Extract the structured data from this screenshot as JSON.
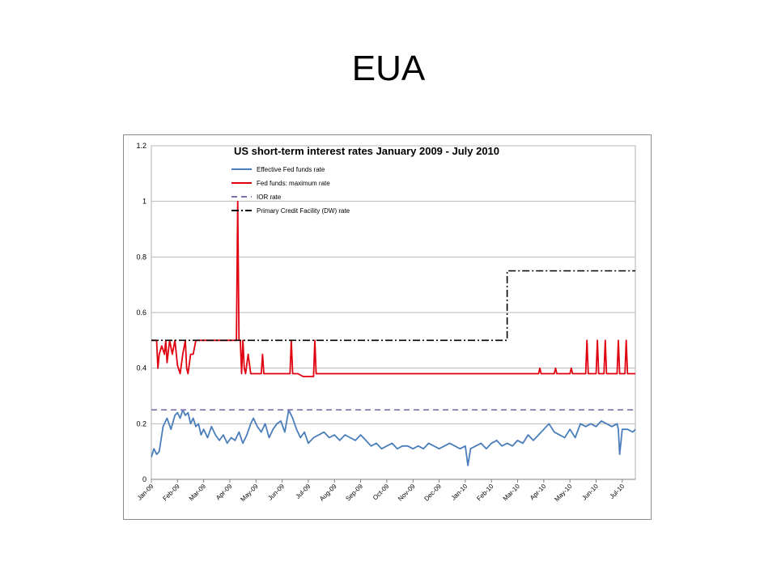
{
  "slide": {
    "title": "EUA"
  },
  "chart_data": {
    "type": "line",
    "title": "US short-term interest rates January 2009 - July 2010",
    "xlabel": "",
    "ylabel": "",
    "ylim": [
      0,
      1.2
    ],
    "yticks": [
      "0",
      "0.2",
      "0.4",
      "0.6",
      "0.8",
      "1",
      "1.2"
    ],
    "grid": true,
    "legend_position": "top-left",
    "x_tick_labels": [
      "Jan-09",
      "Feb-09",
      "Mar-09",
      "Apr-09",
      "May-09",
      "Jun-09",
      "Jul-09",
      "Aug-09",
      "Sep-09",
      "Oct-09",
      "Nov-09",
      "Dec-09",
      "Jan-10",
      "Feb-10",
      "Mar-10",
      "Apr-10",
      "May-10",
      "Jun-10",
      "Jul-10"
    ],
    "series": [
      {
        "name": "Effective Fed funds rate",
        "color": "#4a7ebb",
        "style": "solid",
        "x": [
          0,
          0.1,
          0.2,
          0.3,
          0.45,
          0.6,
          0.75,
          0.9,
          1.0,
          1.1,
          1.2,
          1.3,
          1.4,
          1.5,
          1.6,
          1.7,
          1.8,
          1.9,
          2.0,
          2.15,
          2.3,
          2.45,
          2.6,
          2.75,
          2.9,
          3.05,
          3.2,
          3.35,
          3.5,
          3.65,
          3.8,
          3.9,
          4.05,
          4.2,
          4.35,
          4.5,
          4.65,
          4.8,
          4.95,
          5.1,
          5.25,
          5.4,
          5.55,
          5.7,
          5.85,
          6.0,
          6.2,
          6.4,
          6.6,
          6.8,
          7.0,
          7.2,
          7.4,
          7.6,
          7.8,
          8.0,
          8.2,
          8.4,
          8.6,
          8.8,
          9.0,
          9.2,
          9.4,
          9.6,
          9.8,
          10.0,
          10.2,
          10.4,
          10.6,
          10.8,
          11.0,
          11.2,
          11.4,
          11.6,
          11.8,
          12.0,
          12.1,
          12.2,
          12.4,
          12.6,
          12.8,
          13.0,
          13.2,
          13.4,
          13.6,
          13.8,
          14.0,
          14.2,
          14.4,
          14.6,
          14.8,
          14.9,
          15.0,
          15.2,
          15.4,
          15.6,
          15.8,
          16.0,
          16.2,
          16.4,
          16.6,
          16.8,
          17.0,
          17.2,
          17.4,
          17.6,
          17.8,
          17.85,
          17.9,
          18.0,
          18.2,
          18.4,
          18.5
        ],
        "y": [
          0.08,
          0.11,
          0.09,
          0.1,
          0.19,
          0.22,
          0.18,
          0.23,
          0.24,
          0.22,
          0.25,
          0.23,
          0.24,
          0.2,
          0.22,
          0.19,
          0.2,
          0.16,
          0.18,
          0.15,
          0.19,
          0.16,
          0.14,
          0.16,
          0.13,
          0.15,
          0.14,
          0.17,
          0.13,
          0.16,
          0.2,
          0.22,
          0.19,
          0.17,
          0.2,
          0.15,
          0.18,
          0.2,
          0.21,
          0.17,
          0.25,
          0.22,
          0.18,
          0.15,
          0.17,
          0.13,
          0.15,
          0.16,
          0.17,
          0.15,
          0.16,
          0.14,
          0.16,
          0.15,
          0.14,
          0.16,
          0.14,
          0.12,
          0.13,
          0.11,
          0.12,
          0.13,
          0.11,
          0.12,
          0.12,
          0.11,
          0.12,
          0.11,
          0.13,
          0.12,
          0.11,
          0.12,
          0.13,
          0.12,
          0.11,
          0.12,
          0.05,
          0.11,
          0.12,
          0.13,
          0.11,
          0.13,
          0.14,
          0.12,
          0.13,
          0.12,
          0.14,
          0.13,
          0.16,
          0.14,
          0.16,
          0.17,
          0.18,
          0.2,
          0.17,
          0.16,
          0.15,
          0.18,
          0.15,
          0.2,
          0.19,
          0.2,
          0.19,
          0.21,
          0.2,
          0.19,
          0.2,
          0.18,
          0.09,
          0.18,
          0.18,
          0.17,
          0.18
        ]
      },
      {
        "name": "Fed funds: maximum rate",
        "color": "#e0000f",
        "style": "solid",
        "x": [
          0,
          0.2,
          0.25,
          0.3,
          0.4,
          0.5,
          0.55,
          0.6,
          0.7,
          0.8,
          0.9,
          1.0,
          1.1,
          1.2,
          1.3,
          1.35,
          1.4,
          1.5,
          1.6,
          1.7,
          1.8,
          2.0,
          2.5,
          3.0,
          3.25,
          3.3,
          3.35,
          3.4,
          3.45,
          3.5,
          3.55,
          3.6,
          3.7,
          3.8,
          4.0,
          4.2,
          4.25,
          4.3,
          4.5,
          4.8,
          5.0,
          5.3,
          5.35,
          5.4,
          5.6,
          5.8,
          6.0,
          6.2,
          6.25,
          6.3,
          6.5,
          7.0,
          8.0,
          9.0,
          10.0,
          11.0,
          12.0,
          13.0,
          14.0,
          14.2,
          14.25,
          14.3,
          14.8,
          14.85,
          14.9,
          15.4,
          15.45,
          15.5,
          16.0,
          16.05,
          16.1,
          16.6,
          16.65,
          16.7,
          17.0,
          17.05,
          17.1,
          17.3,
          17.35,
          17.4,
          17.8,
          17.85,
          17.9,
          18.0,
          18.1,
          18.15,
          18.2,
          18.5
        ],
        "y": [
          0.5,
          0.5,
          0.4,
          0.45,
          0.48,
          0.45,
          0.5,
          0.42,
          0.5,
          0.45,
          0.5,
          0.41,
          0.38,
          0.45,
          0.5,
          0.4,
          0.38,
          0.45,
          0.45,
          0.5,
          0.5,
          0.5,
          0.5,
          0.5,
          0.5,
          1.0,
          0.5,
          0.5,
          0.38,
          0.5,
          0.4,
          0.38,
          0.45,
          0.38,
          0.38,
          0.38,
          0.45,
          0.38,
          0.38,
          0.38,
          0.38,
          0.38,
          0.5,
          0.38,
          0.38,
          0.37,
          0.37,
          0.37,
          0.5,
          0.38,
          0.38,
          0.38,
          0.38,
          0.38,
          0.38,
          0.38,
          0.38,
          0.38,
          0.38,
          0.38,
          0.38,
          0.38,
          0.38,
          0.4,
          0.38,
          0.38,
          0.4,
          0.38,
          0.38,
          0.4,
          0.38,
          0.38,
          0.5,
          0.38,
          0.38,
          0.5,
          0.38,
          0.38,
          0.5,
          0.38,
          0.38,
          0.5,
          0.38,
          0.38,
          0.38,
          0.5,
          0.38,
          0.38
        ]
      },
      {
        "name": "IOR rate",
        "color": "#7f6fb0",
        "style": "dashed",
        "x": [
          0,
          18.5
        ],
        "y": [
          0.25,
          0.25
        ]
      },
      {
        "name": "Primary Credit Facility (DW) rate",
        "color": "#000000",
        "style": "dash-dot",
        "x": [
          0,
          13.6,
          13.6,
          18.5
        ],
        "y": [
          0.5,
          0.5,
          0.75,
          0.75
        ]
      }
    ]
  }
}
